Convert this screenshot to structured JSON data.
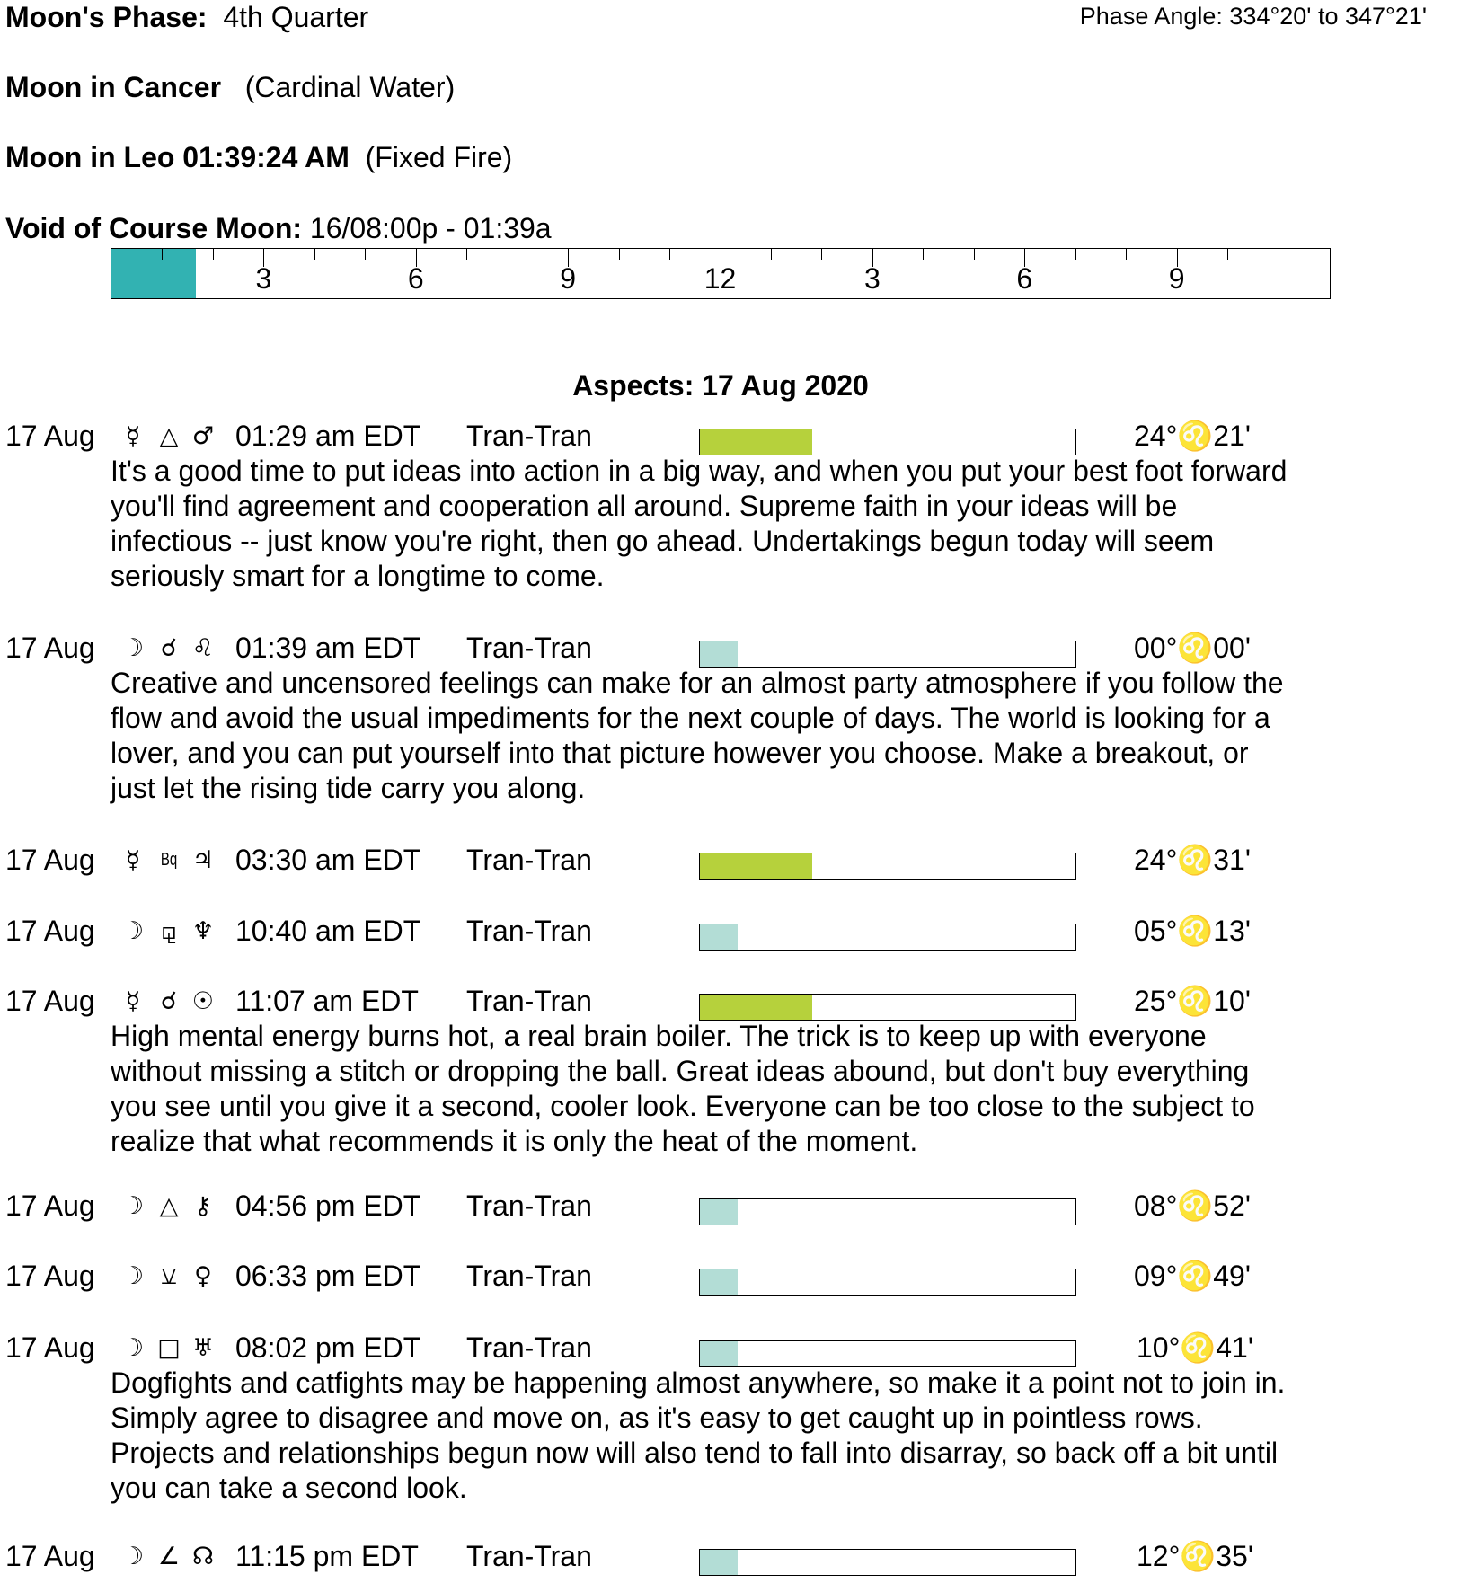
{
  "header": {
    "phase_label": "Moon's Phase:",
    "phase_value": "4th Quarter",
    "phase_angle": "Phase Angle:  334°20' to 347°21'",
    "moon_sign_label": "Moon in Cancer",
    "moon_sign_element": "(Cardinal Water)",
    "moon_ingress_label": "Moon in Leo 01:39:24 AM",
    "moon_ingress_element": "(Fixed Fire)",
    "voc_label": "Void of Course Moon:",
    "voc_value": "16/08:00p -  01:39a"
  },
  "timeline": {
    "hours": 24,
    "voc_end_hour": 1.66,
    "labels": [
      {
        "hour": 3,
        "text": "3"
      },
      {
        "hour": 6,
        "text": "6"
      },
      {
        "hour": 9,
        "text": "9"
      },
      {
        "hour": 12,
        "text": "12"
      },
      {
        "hour": 15,
        "text": "3"
      },
      {
        "hour": 18,
        "text": "6"
      },
      {
        "hour": 21,
        "text": "9"
      }
    ],
    "fill_color": "#32b2b2"
  },
  "aspects_title": "Aspects: 17 Aug 2020",
  "colors": {
    "strong": "#b6d13c",
    "weak": "#b3ddd6"
  },
  "aspects": [
    {
      "date": "17 Aug",
      "p1": "☿",
      "p1_icon": "mercury-icon",
      "asp": "△",
      "asp_icon": "trine-icon",
      "p2": "♂",
      "p2_icon": "mars-icon",
      "time": "01:29 am EDT",
      "type": "Tran-Tran",
      "strength": 30,
      "level": "strong",
      "position": "24°♌21'",
      "desc": [
        "It's a good time to put ideas into action in a big way, and when you put your best foot forward",
        "you'll find agreement and cooperation all around. Supreme faith in your ideas will be",
        "infectious -- just know you're right, then go ahead. Undertakings begun today will seem",
        "seriously smart for a longtime to come."
      ]
    },
    {
      "date": "17 Aug",
      "p1": "☽",
      "p1_icon": "moon-icon",
      "asp": "☌",
      "asp_icon": "conjunction-icon",
      "p2": "♌",
      "p2_icon": "leo-icon",
      "time": "01:39 am EDT",
      "type": "Tran-Tran",
      "strength": 10,
      "level": "weak",
      "position": "00°♌00'",
      "desc": [
        "Creative and uncensored feelings can make for an almost party atmosphere if you follow the",
        "flow and avoid the usual impediments for the next couple of days. The world is looking for a",
        "lover, and you can put yourself into that picture however you choose. Make a breakout, or",
        "just let the rising tide carry you along."
      ]
    },
    {
      "date": "17 Aug",
      "p1": "☿",
      "p1_icon": "mercury-icon",
      "asp": "Bq",
      "asp_icon": "biquintile-icon",
      "p2": "♃",
      "p2_icon": "jupiter-icon",
      "time": "03:30 am EDT",
      "type": "Tran-Tran",
      "strength": 30,
      "level": "strong",
      "position": "24°♌31'",
      "desc": []
    },
    {
      "date": "17 Aug",
      "p1": "☽",
      "p1_icon": "moon-icon",
      "asp": "⚼",
      "asp_icon": "quindecile-icon",
      "p2": "♆",
      "p2_icon": "neptune-icon",
      "time": "10:40 am EDT",
      "type": "Tran-Tran",
      "strength": 10,
      "level": "weak",
      "position": "05°♌13'",
      "desc": []
    },
    {
      "date": "17 Aug",
      "p1": "☿",
      "p1_icon": "mercury-icon",
      "asp": "☌",
      "asp_icon": "conjunction-icon",
      "p2": "☉",
      "p2_icon": "sun-icon",
      "time": "11:07 am EDT",
      "type": "Tran-Tran",
      "strength": 30,
      "level": "strong",
      "position": "25°♌10'",
      "desc": [
        "High mental energy burns hot, a real brain boiler. The trick is to keep up with everyone",
        "without missing a stitch or dropping the ball. Great ideas abound, but don't buy everything",
        "you see until you give it a second, cooler look. Everyone can be too close to the subject to",
        "realize that what recommends it is only the heat of the moment."
      ]
    },
    {
      "date": "17 Aug",
      "p1": "☽",
      "p1_icon": "moon-icon",
      "asp": "△",
      "asp_icon": "trine-icon",
      "p2": "⚷",
      "p2_icon": "chiron-icon",
      "time": "04:56 pm EDT",
      "type": "Tran-Tran",
      "strength": 10,
      "level": "weak",
      "position": "08°♌52'",
      "desc": []
    },
    {
      "date": "17 Aug",
      "p1": "☽",
      "p1_icon": "moon-icon",
      "asp": "⚺",
      "asp_icon": "semisextile-icon",
      "p2": "♀",
      "p2_icon": "venus-icon",
      "time": "06:33 pm EDT",
      "type": "Tran-Tran",
      "strength": 10,
      "level": "weak",
      "position": "09°♌49'",
      "desc": []
    },
    {
      "date": "17 Aug",
      "p1": "☽",
      "p1_icon": "moon-icon",
      "asp": "□",
      "asp_icon": "square-icon",
      "p2": "♅",
      "p2_icon": "uranus-icon",
      "time": "08:02 pm EDT",
      "type": "Tran-Tran",
      "strength": 10,
      "level": "weak",
      "position": "10°♌41'",
      "desc": [
        "Dogfights and catfights may be happening almost anywhere, so make it a point not to join in.",
        "Simply agree to disagree and move on, as it's easy to get caught up in pointless rows.",
        "Projects and relationships begun now will also tend to fall into disarray, so back off a bit until",
        "you can take a second look."
      ]
    },
    {
      "date": "17 Aug",
      "p1": "☽",
      "p1_icon": "moon-icon",
      "asp": "∠",
      "asp_icon": "semisquare-icon",
      "p2": "☊",
      "p2_icon": "north-node-icon",
      "time": "11:15 pm EDT",
      "type": "Tran-Tran",
      "strength": 10,
      "level": "weak",
      "position": "12°♌35'",
      "desc": []
    }
  ]
}
